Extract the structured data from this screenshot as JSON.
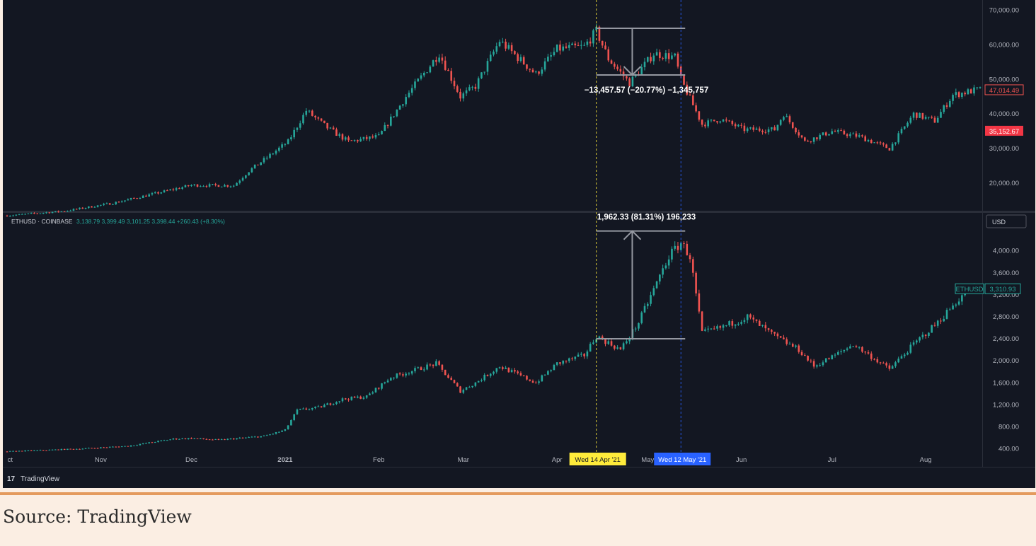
{
  "caption": "Source: TradingView",
  "brand": {
    "logo_mark": "17",
    "name": "TradingView"
  },
  "colors": {
    "background": "#131722",
    "up": "#26a69a",
    "down": "#ef5350",
    "crosshair_yellow": "#ffeb3b",
    "crosshair_blue": "#2962ff",
    "measure": "#9598a1",
    "accent_orange": "#e49a5d",
    "page_bg": "#fbeee3"
  },
  "chart_data": [
    {
      "type": "candlestick",
      "pane": "top",
      "title": "",
      "y_ticks": [
        20000,
        30000,
        40000,
        50000,
        60000,
        70000
      ],
      "y_tick_labels": [
        "20,000.00",
        "30,000.00",
        "40,000.00",
        "50,000.00",
        "60,000.00",
        "70,000.00"
      ],
      "ylim": [
        12000,
        73000
      ],
      "price_badges": [
        {
          "label": "47,014.49",
          "value": 47014.49,
          "style": "outline-red"
        },
        {
          "label": "35,152.67",
          "value": 35152.67,
          "style": "solid-pink"
        }
      ],
      "measure": {
        "label": "−13,457.57 (−20.77%) −1,345,757",
        "from_date": "2021-04-14",
        "to_date": "2021-05-12",
        "from_value": 64800,
        "to_value": 51300
      },
      "path_points": [
        [
          "2020-10-01",
          10600
        ],
        [
          "2020-10-20",
          11900
        ],
        [
          "2020-11-05",
          14200
        ],
        [
          "2020-11-25",
          18200
        ],
        [
          "2020-12-01",
          19400
        ],
        [
          "2020-12-15",
          19300
        ],
        [
          "2020-12-20",
          23500
        ],
        [
          "2021-01-02",
          32000
        ],
        [
          "2021-01-08",
          41000
        ],
        [
          "2021-01-15",
          36000
        ],
        [
          "2021-01-22",
          32000
        ],
        [
          "2021-02-01",
          33500
        ],
        [
          "2021-02-10",
          45000
        ],
        [
          "2021-02-21",
          57500
        ],
        [
          "2021-02-28",
          45000
        ],
        [
          "2021-03-05",
          48000
        ],
        [
          "2021-03-13",
          61200
        ],
        [
          "2021-03-25",
          51500
        ],
        [
          "2021-04-01",
          58800
        ],
        [
          "2021-04-10",
          59500
        ],
        [
          "2021-04-14",
          64000
        ],
        [
          "2021-04-18",
          56000
        ],
        [
          "2021-04-25",
          49000
        ],
        [
          "2021-05-03",
          57500
        ],
        [
          "2021-05-10",
          56500
        ],
        [
          "2021-05-12",
          50000
        ],
        [
          "2021-05-19",
          37000
        ],
        [
          "2021-05-25",
          38500
        ],
        [
          "2021-06-02",
          35500
        ],
        [
          "2021-06-12",
          35500
        ],
        [
          "2021-06-15",
          40000
        ],
        [
          "2021-06-22",
          32000
        ],
        [
          "2021-07-01",
          35000
        ],
        [
          "2021-07-10",
          33500
        ],
        [
          "2021-07-20",
          30000
        ],
        [
          "2021-07-28",
          40000
        ],
        [
          "2021-08-04",
          38000
        ],
        [
          "2021-08-10",
          45500
        ],
        [
          "2021-08-18",
          47014
        ]
      ]
    },
    {
      "type": "candlestick",
      "pane": "bottom",
      "legend_symbol": "ETHUSD · COINBASE",
      "legend_values": "3,138.79  3,399.49  3,101.25  3,398.44  +260.43 (+8.30%)",
      "currency_label": "USD",
      "y_ticks": [
        400,
        800,
        1200,
        1600,
        2000,
        2400,
        2800,
        3200,
        3600,
        4000,
        4400
      ],
      "y_tick_labels": [
        "400.00",
        "800.00",
        "1,200.00",
        "1,600.00",
        "2,000.00",
        "2,400.00",
        "2,800.00",
        "3,200.00",
        "3,600.00",
        "4,000.00",
        "4,400.00"
      ],
      "ylim": [
        330,
        4420
      ],
      "price_badges": [
        {
          "label": "3,310.93",
          "value": 3310.93,
          "style": "outline-teal",
          "symbol": "ETHUSD"
        }
      ],
      "measure": {
        "label": "1,962.33 (81.31%) 196,233",
        "from_date": "2021-04-14",
        "to_date": "2021-05-12",
        "from_value": 2400,
        "to_value": 4360
      },
      "path_points": [
        [
          "2020-10-01",
          350
        ],
        [
          "2020-10-25",
          400
        ],
        [
          "2020-11-10",
          450
        ],
        [
          "2020-11-25",
          580
        ],
        [
          "2020-12-01",
          590
        ],
        [
          "2020-12-10",
          560
        ],
        [
          "2020-12-25",
          630
        ],
        [
          "2021-01-01",
          740
        ],
        [
          "2021-01-05",
          1100
        ],
        [
          "2021-01-12",
          1150
        ],
        [
          "2021-01-20",
          1300
        ],
        [
          "2021-01-28",
          1350
        ],
        [
          "2021-02-05",
          1700
        ],
        [
          "2021-02-20",
          1950
        ],
        [
          "2021-02-28",
          1450
        ],
        [
          "2021-03-05",
          1600
        ],
        [
          "2021-03-13",
          1900
        ],
        [
          "2021-03-25",
          1600
        ],
        [
          "2021-04-01",
          1950
        ],
        [
          "2021-04-10",
          2100
        ],
        [
          "2021-04-14",
          2450
        ],
        [
          "2021-04-22",
          2200
        ],
        [
          "2021-04-28",
          2700
        ],
        [
          "2021-05-03",
          3300
        ],
        [
          "2021-05-08",
          3900
        ],
        [
          "2021-05-12",
          4150
        ],
        [
          "2021-05-15",
          3900
        ],
        [
          "2021-05-19",
          2500
        ],
        [
          "2021-05-25",
          2600
        ],
        [
          "2021-06-03",
          2800
        ],
        [
          "2021-06-12",
          2450
        ],
        [
          "2021-06-20",
          2200
        ],
        [
          "2021-06-25",
          1900
        ],
        [
          "2021-07-02",
          2100
        ],
        [
          "2021-07-08",
          2300
        ],
        [
          "2021-07-20",
          1850
        ],
        [
          "2021-07-28",
          2300
        ],
        [
          "2021-08-05",
          2700
        ],
        [
          "2021-08-14",
          3250
        ],
        [
          "2021-08-18",
          3310
        ]
      ]
    }
  ],
  "x_axis": {
    "labels": [
      {
        "text": "ct",
        "date": "2020-10-02"
      },
      {
        "text": "Nov",
        "date": "2020-11-01"
      },
      {
        "text": "Dec",
        "date": "2020-12-01"
      },
      {
        "text": "2021",
        "date": "2021-01-01",
        "bold": true
      },
      {
        "text": "Feb",
        "date": "2021-02-01"
      },
      {
        "text": "Mar",
        "date": "2021-03-01"
      },
      {
        "text": "Apr",
        "date": "2021-04-01"
      },
      {
        "text": "May",
        "date": "2021-05-01"
      },
      {
        "text": "Jun",
        "date": "2021-06-01"
      },
      {
        "text": "Jul",
        "date": "2021-07-01"
      },
      {
        "text": "Aug",
        "date": "2021-08-01"
      }
    ],
    "crosshair_tags": [
      {
        "text": "Wed 14 Apr '21",
        "date": "2021-04-14",
        "color": "yellow"
      },
      {
        "text": "Wed 12 May '21",
        "date": "2021-05-12",
        "color": "blue"
      }
    ]
  }
}
